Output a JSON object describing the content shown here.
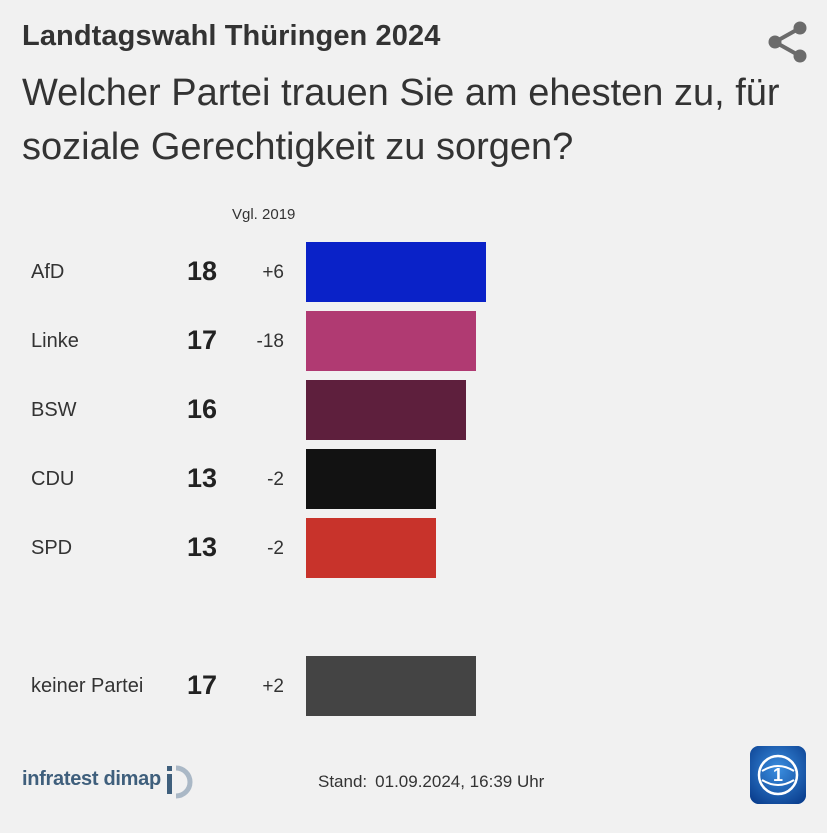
{
  "header": {
    "kicker": "Landtagswahl Thüringen 2024",
    "title": "Welcher Partei trauen Sie am ehesten zu, für soziale Gerechtigkeit zu sorgen?",
    "share_icon": "share-icon"
  },
  "chart_data": {
    "type": "bar",
    "orientation": "horizontal",
    "column_header": "Vgl. 2019",
    "categories": [
      "AfD",
      "Linke",
      "BSW",
      "CDU",
      "SPD",
      "keiner Partei"
    ],
    "values": [
      18,
      17,
      16,
      13,
      13,
      17
    ],
    "changes": [
      "+6",
      "-18",
      "",
      "-2",
      "-2",
      "+2"
    ],
    "colors": [
      "#0a22c8",
      "#b03a72",
      "#5e1f3d",
      "#121212",
      "#c8332b",
      "#444444"
    ],
    "unit": "%",
    "grid": false,
    "legend": "none"
  },
  "footer": {
    "source": "infratest dimap",
    "stand_label": "Stand:",
    "stand_value": "01.09.2024, 16:39 Uhr",
    "brand_icon": "tagesschau-logo-icon"
  }
}
